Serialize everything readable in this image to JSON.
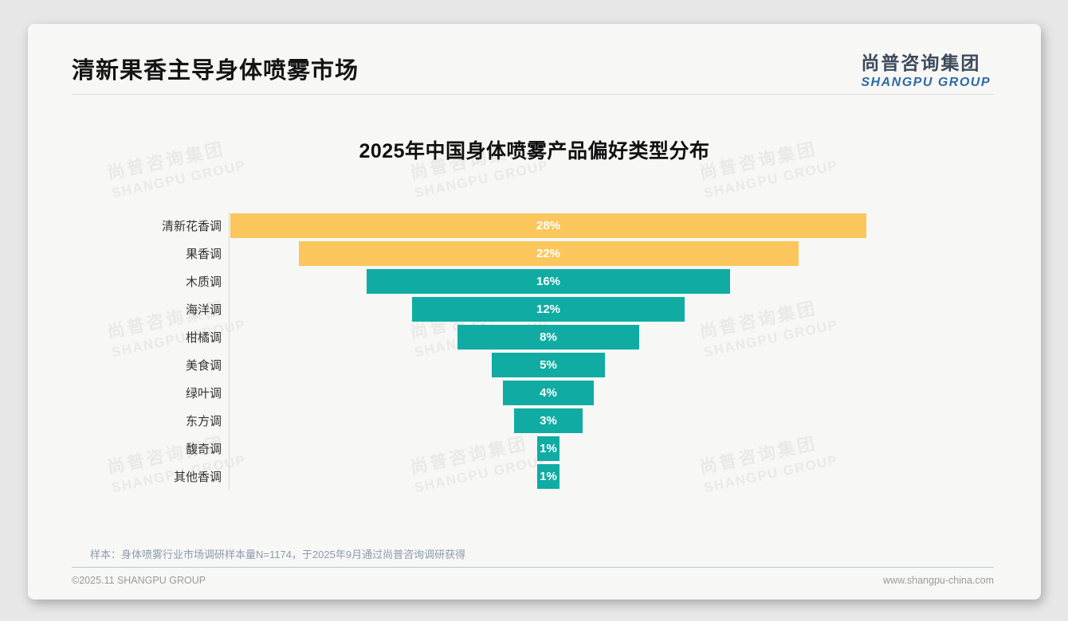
{
  "header": {
    "title": "清新果香主导身体喷雾市场"
  },
  "logo": {
    "cn": "尚普咨询集团",
    "en": "SHANGPU GROUP"
  },
  "watermark": {
    "line1": "尚普咨询集团",
    "line2": "SHANGPU GROUP"
  },
  "chart_data": {
    "type": "bar",
    "variant": "centered-funnel-horizontal",
    "title": "2025年中国身体喷雾产品偏好类型分布",
    "categories": [
      "清新花香调",
      "果香调",
      "木质调",
      "海洋调",
      "柑橘调",
      "美食调",
      "绿叶调",
      "东方调",
      "馥奇调",
      "其他香调"
    ],
    "values": [
      28,
      22,
      16,
      12,
      8,
      5,
      4,
      3,
      1,
      1
    ],
    "unit": "%",
    "bar_colors": [
      "#FBC75D",
      "#FBC75D",
      "#10ACA3",
      "#10ACA3",
      "#10ACA3",
      "#10ACA3",
      "#10ACA3",
      "#10ACA3",
      "#10ACA3",
      "#10ACA3"
    ],
    "value_label_color": "#FFFFFF",
    "xlim": [
      0,
      30
    ],
    "legend": false,
    "grid": false,
    "axis_line_color": "#D9D9D9"
  },
  "footnote": "样本：身体喷雾行业市场调研样本量N=1174，于2025年9月通过尚普咨询调研获得",
  "footer": {
    "left": "©2025.11 SHANGPU GROUP",
    "right": "www.shangpu-china.com"
  },
  "colors": {
    "accent_yellow": "#FBC75D",
    "accent_teal": "#10ACA3",
    "logo_blue": "#2D6BA3",
    "logo_dark": "#3D4A5C",
    "page_background": "#E7E7E7",
    "card_background": "#F7F7F6"
  }
}
